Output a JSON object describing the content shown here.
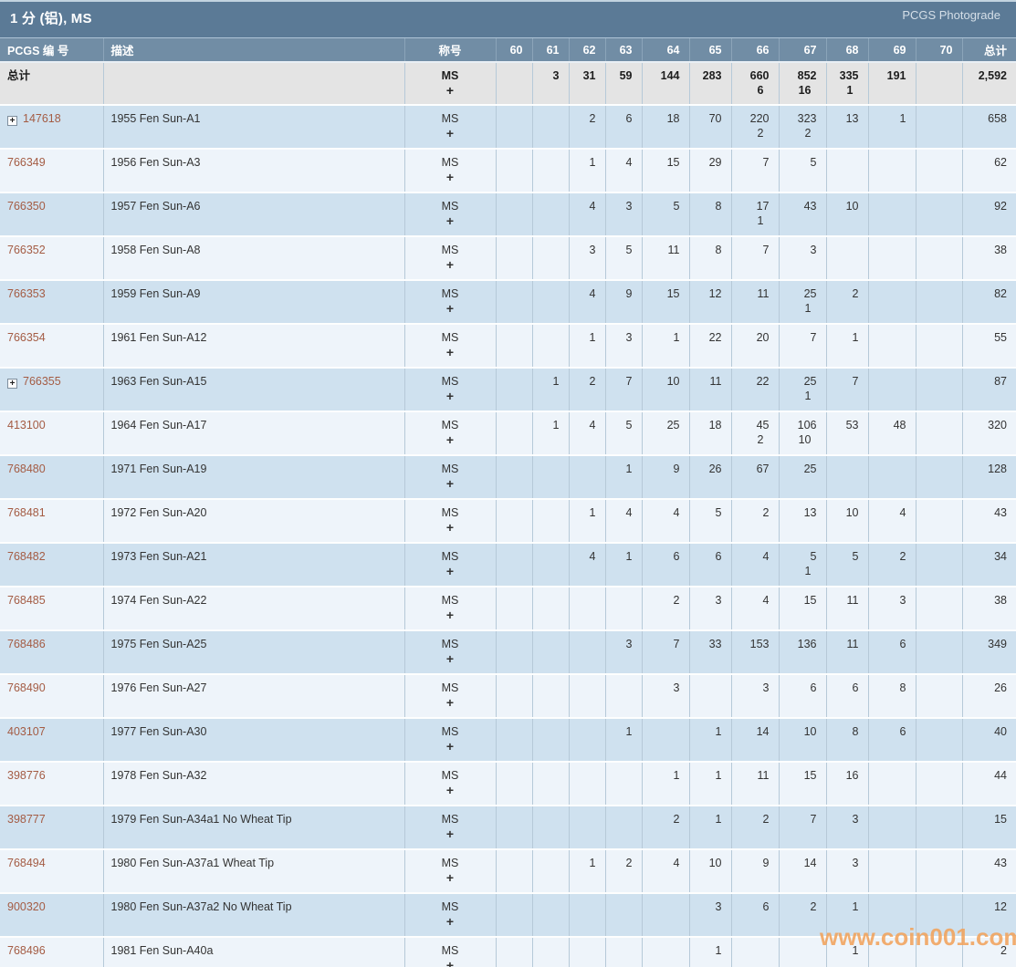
{
  "header": {
    "title": "1 分 (铝), MS",
    "photograde_label": "PCGS Photograde"
  },
  "icons": {
    "expand_glyph": "+"
  },
  "table": {
    "columns": {
      "pcgs_number": "PCGS 编 号",
      "description": "描述",
      "designation": "称号",
      "grades": [
        "60",
        "61",
        "62",
        "63",
        "64",
        "65",
        "66",
        "67",
        "68",
        "69",
        "70"
      ],
      "total": "总计"
    },
    "designation_line1": "MS",
    "designation_line2": "+",
    "total_row": {
      "label": "总计",
      "description": "",
      "ms": [
        "",
        "3",
        "31",
        "59",
        "144",
        "283",
        "660",
        "852",
        "335",
        "191",
        ""
      ],
      "plus": [
        "",
        "",
        "",
        "",
        "",
        "",
        "6",
        "16",
        "1",
        "",
        ""
      ],
      "total": "2,592"
    },
    "rows": [
      {
        "pcgs": "147618",
        "expandable": true,
        "desc": "1955 Fen Sun-A1",
        "ms": [
          "",
          "",
          "2",
          "6",
          "18",
          "70",
          "220",
          "323",
          "13",
          "1",
          ""
        ],
        "plus": [
          "",
          "",
          "",
          "",
          "",
          "",
          "2",
          "2",
          "",
          "",
          ""
        ],
        "total": "658"
      },
      {
        "pcgs": "766349",
        "expandable": false,
        "desc": "1956 Fen Sun-A3",
        "ms": [
          "",
          "",
          "1",
          "4",
          "15",
          "29",
          "7",
          "5",
          "",
          "",
          ""
        ],
        "plus": [
          "",
          "",
          "",
          "",
          "",
          "",
          "",
          "",
          "",
          "",
          ""
        ],
        "total": "62"
      },
      {
        "pcgs": "766350",
        "expandable": false,
        "desc": "1957 Fen Sun-A6",
        "ms": [
          "",
          "",
          "4",
          "3",
          "5",
          "8",
          "17",
          "43",
          "10",
          "",
          ""
        ],
        "plus": [
          "",
          "",
          "",
          "",
          "",
          "",
          "1",
          "",
          "",
          "",
          ""
        ],
        "total": "92"
      },
      {
        "pcgs": "766352",
        "expandable": false,
        "desc": "1958 Fen Sun-A8",
        "ms": [
          "",
          "",
          "3",
          "5",
          "11",
          "8",
          "7",
          "3",
          "",
          "",
          ""
        ],
        "plus": [
          "",
          "",
          "",
          "",
          "",
          "",
          "",
          "",
          "",
          "",
          ""
        ],
        "total": "38"
      },
      {
        "pcgs": "766353",
        "expandable": false,
        "desc": "1959 Fen Sun-A9",
        "ms": [
          "",
          "",
          "4",
          "9",
          "15",
          "12",
          "11",
          "25",
          "2",
          "",
          ""
        ],
        "plus": [
          "",
          "",
          "",
          "",
          "",
          "",
          "",
          "1",
          "",
          "",
          ""
        ],
        "total": "82"
      },
      {
        "pcgs": "766354",
        "expandable": false,
        "desc": "1961 Fen Sun-A12",
        "ms": [
          "",
          "",
          "1",
          "3",
          "1",
          "22",
          "20",
          "7",
          "1",
          "",
          ""
        ],
        "plus": [
          "",
          "",
          "",
          "",
          "",
          "",
          "",
          "",
          "",
          "",
          ""
        ],
        "total": "55"
      },
      {
        "pcgs": "766355",
        "expandable": true,
        "desc": "1963 Fen Sun-A15",
        "ms": [
          "",
          "1",
          "2",
          "7",
          "10",
          "11",
          "22",
          "25",
          "7",
          "",
          ""
        ],
        "plus": [
          "",
          "",
          "",
          "",
          "",
          "",
          "",
          "1",
          "",
          "",
          ""
        ],
        "total": "87"
      },
      {
        "pcgs": "413100",
        "expandable": false,
        "desc": "1964 Fen Sun-A17",
        "ms": [
          "",
          "1",
          "4",
          "5",
          "25",
          "18",
          "45",
          "106",
          "53",
          "48",
          ""
        ],
        "plus": [
          "",
          "",
          "",
          "",
          "",
          "",
          "2",
          "10",
          "",
          "",
          ""
        ],
        "total": "320"
      },
      {
        "pcgs": "768480",
        "expandable": false,
        "desc": "1971 Fen Sun-A19",
        "ms": [
          "",
          "",
          "",
          "1",
          "9",
          "26",
          "67",
          "25",
          "",
          "",
          ""
        ],
        "plus": [
          "",
          "",
          "",
          "",
          "",
          "",
          "",
          "",
          "",
          "",
          ""
        ],
        "total": "128"
      },
      {
        "pcgs": "768481",
        "expandable": false,
        "desc": "1972 Fen Sun-A20",
        "ms": [
          "",
          "",
          "1",
          "4",
          "4",
          "5",
          "2",
          "13",
          "10",
          "4",
          ""
        ],
        "plus": [
          "",
          "",
          "",
          "",
          "",
          "",
          "",
          "",
          "",
          "",
          ""
        ],
        "total": "43"
      },
      {
        "pcgs": "768482",
        "expandable": false,
        "desc": "1973 Fen Sun-A21",
        "ms": [
          "",
          "",
          "4",
          "1",
          "6",
          "6",
          "4",
          "5",
          "5",
          "2",
          ""
        ],
        "plus": [
          "",
          "",
          "",
          "",
          "",
          "",
          "",
          "1",
          "",
          "",
          ""
        ],
        "total": "34"
      },
      {
        "pcgs": "768485",
        "expandable": false,
        "desc": "1974 Fen Sun-A22",
        "ms": [
          "",
          "",
          "",
          "",
          "2",
          "3",
          "4",
          "15",
          "11",
          "3",
          ""
        ],
        "plus": [
          "",
          "",
          "",
          "",
          "",
          "",
          "",
          "",
          "",
          "",
          ""
        ],
        "total": "38"
      },
      {
        "pcgs": "768486",
        "expandable": false,
        "desc": "1975 Fen Sun-A25",
        "ms": [
          "",
          "",
          "",
          "3",
          "7",
          "33",
          "153",
          "136",
          "11",
          "6",
          ""
        ],
        "plus": [
          "",
          "",
          "",
          "",
          "",
          "",
          "",
          "",
          "",
          "",
          ""
        ],
        "total": "349"
      },
      {
        "pcgs": "768490",
        "expandable": false,
        "desc": "1976 Fen Sun-A27",
        "ms": [
          "",
          "",
          "",
          "",
          "3",
          "",
          "3",
          "6",
          "6",
          "8",
          ""
        ],
        "plus": [
          "",
          "",
          "",
          "",
          "",
          "",
          "",
          "",
          "",
          "",
          ""
        ],
        "total": "26"
      },
      {
        "pcgs": "403107",
        "expandable": false,
        "desc": "1977 Fen Sun-A30",
        "ms": [
          "",
          "",
          "",
          "1",
          "",
          "1",
          "14",
          "10",
          "8",
          "6",
          ""
        ],
        "plus": [
          "",
          "",
          "",
          "",
          "",
          "",
          "",
          "",
          "",
          "",
          ""
        ],
        "total": "40"
      },
      {
        "pcgs": "398776",
        "expandable": false,
        "desc": "1978 Fen Sun-A32",
        "ms": [
          "",
          "",
          "",
          "",
          "1",
          "1",
          "11",
          "15",
          "16",
          "",
          ""
        ],
        "plus": [
          "",
          "",
          "",
          "",
          "",
          "",
          "",
          "",
          "",
          "",
          ""
        ],
        "total": "44"
      },
      {
        "pcgs": "398777",
        "expandable": false,
        "desc": "1979 Fen Sun-A34a1 No Wheat Tip",
        "ms": [
          "",
          "",
          "",
          "",
          "2",
          "1",
          "2",
          "7",
          "3",
          "",
          ""
        ],
        "plus": [
          "",
          "",
          "",
          "",
          "",
          "",
          "",
          "",
          "",
          "",
          ""
        ],
        "total": "15"
      },
      {
        "pcgs": "768494",
        "expandable": false,
        "desc": "1980 Fen Sun-A37a1 Wheat Tip",
        "ms": [
          "",
          "",
          "1",
          "2",
          "4",
          "10",
          "9",
          "14",
          "3",
          "",
          ""
        ],
        "plus": [
          "",
          "",
          "",
          "",
          "",
          "",
          "",
          "",
          "",
          "",
          ""
        ],
        "total": "43"
      },
      {
        "pcgs": "900320",
        "expandable": false,
        "desc": "1980 Fen Sun-A37a2 No Wheat Tip",
        "ms": [
          "",
          "",
          "",
          "",
          "",
          "3",
          "6",
          "2",
          "1",
          "",
          ""
        ],
        "plus": [
          "",
          "",
          "",
          "",
          "",
          "",
          "",
          "",
          "",
          "",
          ""
        ],
        "total": "12"
      },
      {
        "pcgs": "768496",
        "expandable": false,
        "desc": "1981 Fen Sun-A40a",
        "ms": [
          "",
          "",
          "",
          "",
          "",
          "1",
          "",
          "",
          "1",
          "",
          ""
        ],
        "plus": [
          "",
          "",
          "",
          "",
          "",
          "",
          "",
          "",
          "",
          "",
          ""
        ],
        "total": "2"
      }
    ]
  },
  "watermark": "www.coin001.com",
  "colors": {
    "title_bar": "#5b7a96",
    "header_row": "#718da5",
    "total_row_bg": "#e4e4e4",
    "row_blue": "#cfe1ef",
    "row_light": "#eef4fa",
    "pcgs_link": "#a45c44",
    "watermark": "#f2a35c"
  }
}
